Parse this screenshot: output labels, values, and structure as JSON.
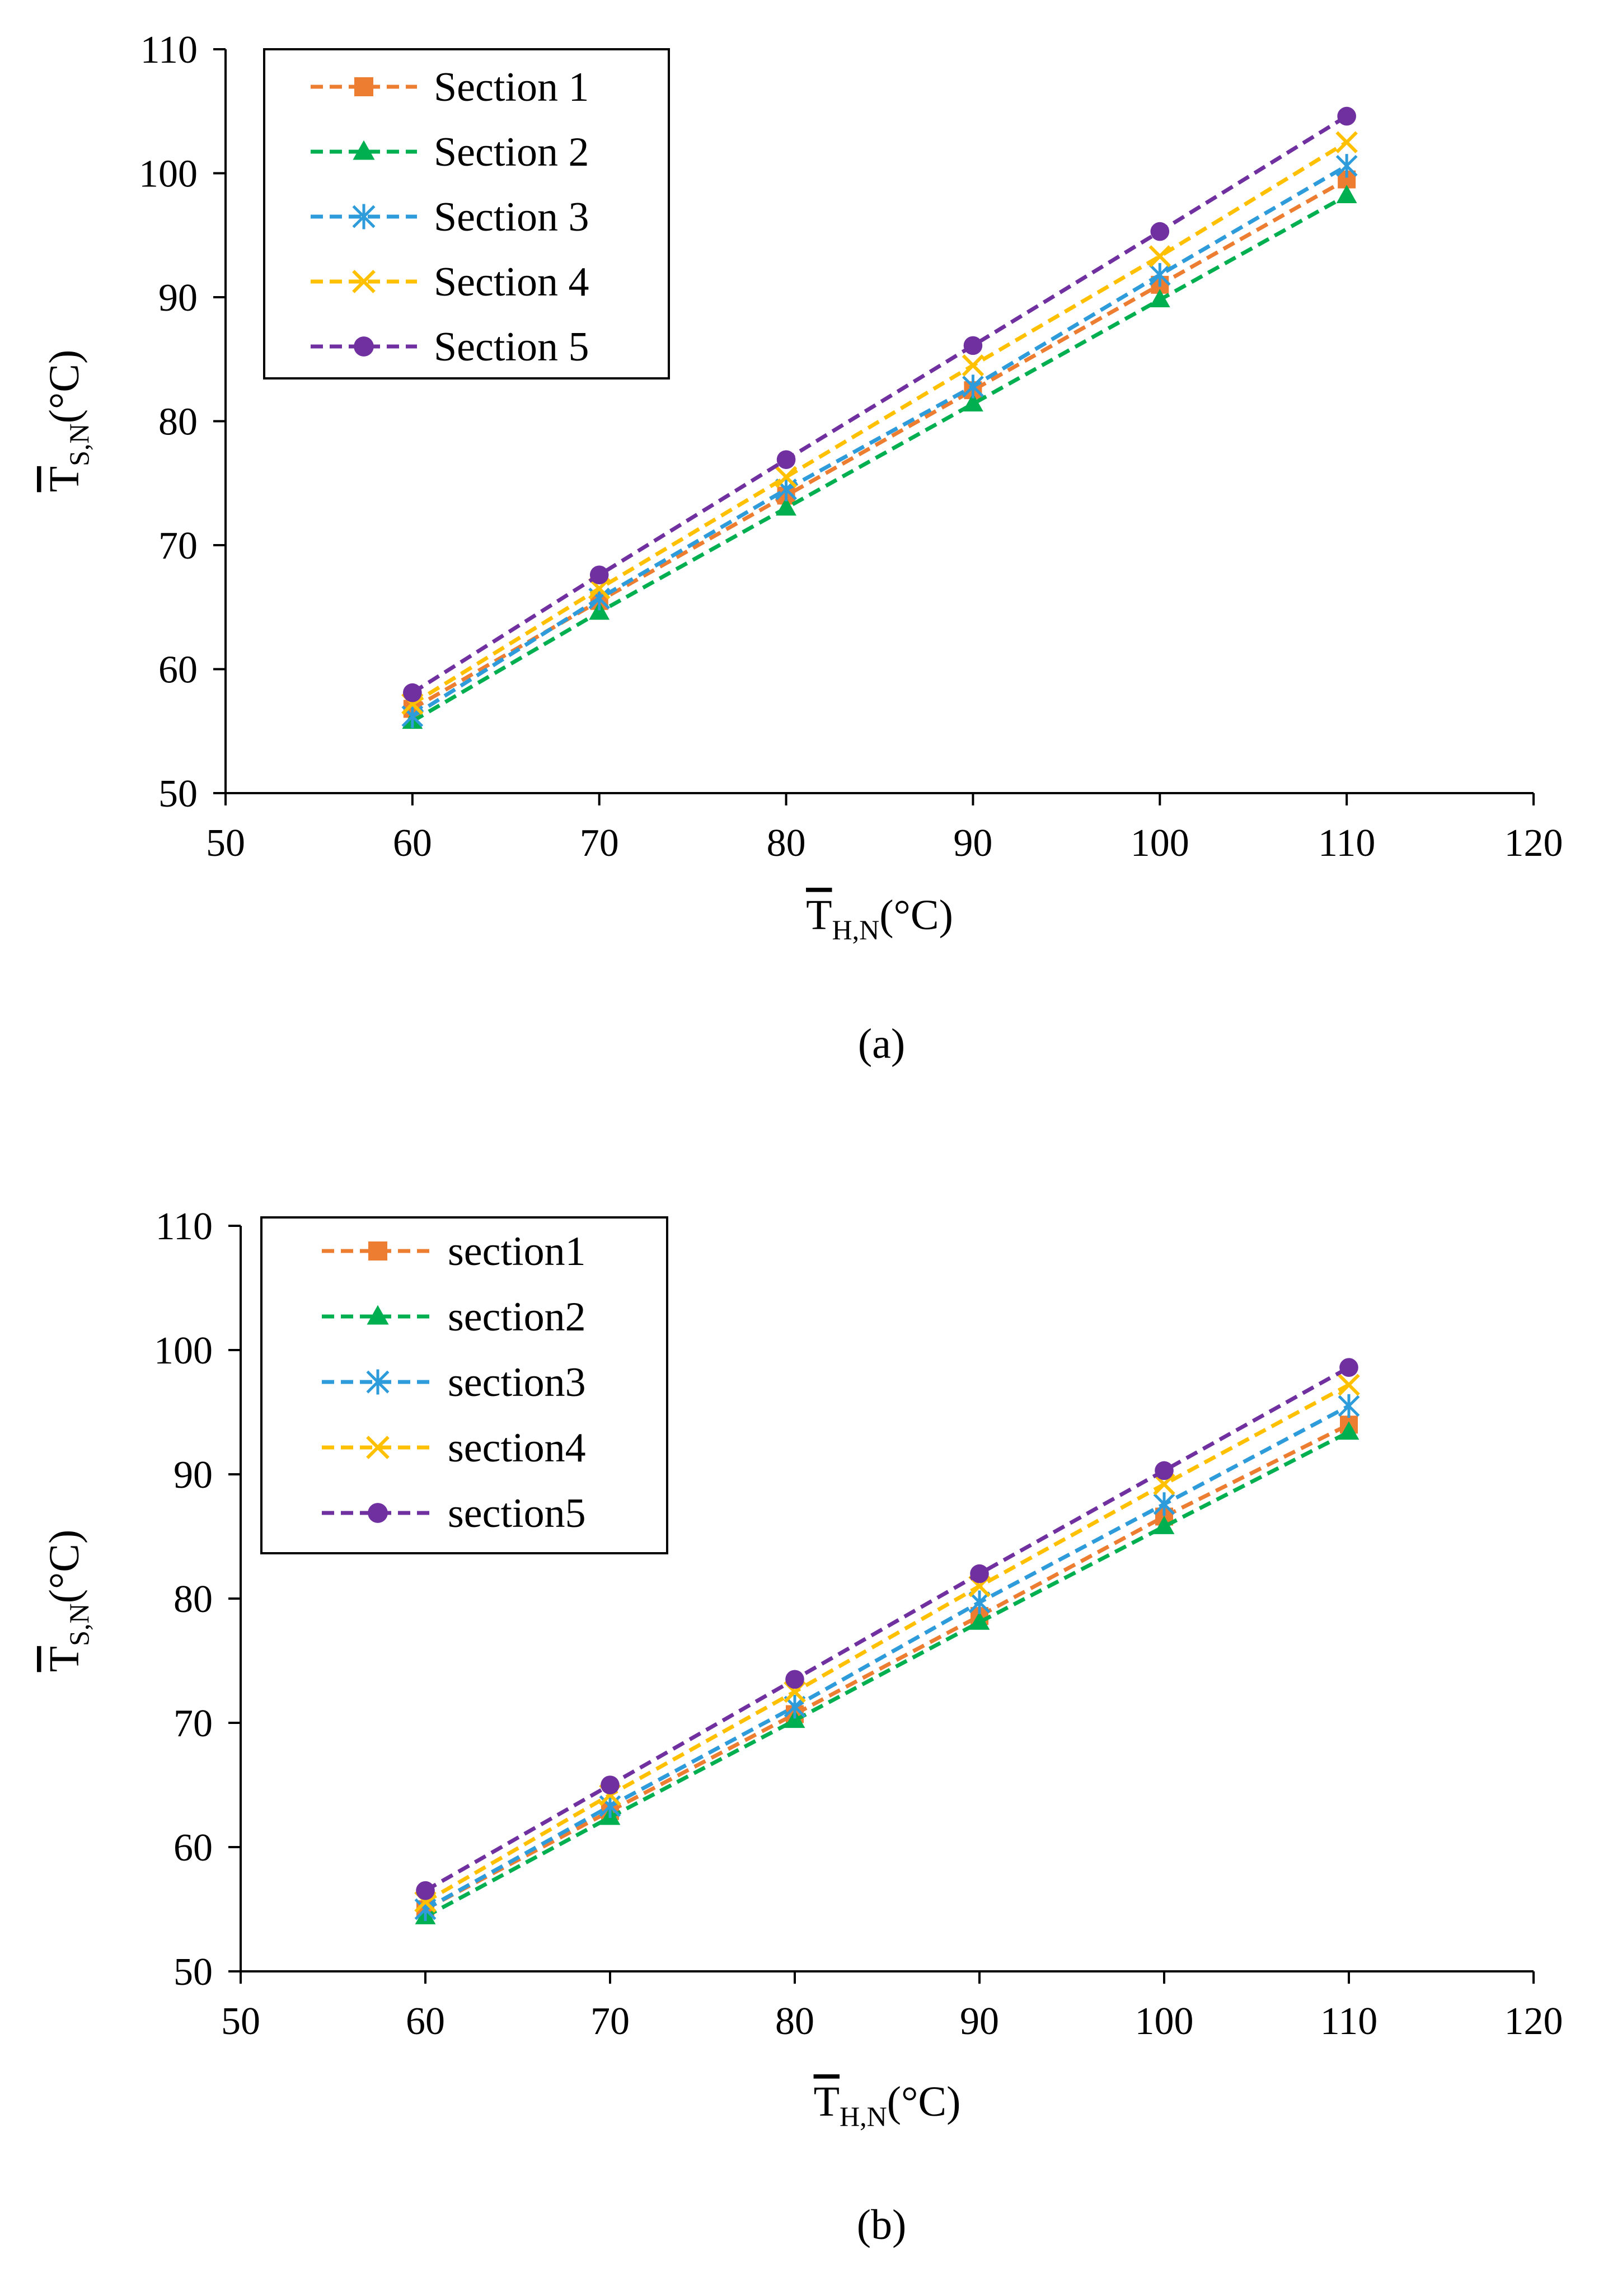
{
  "chart_data": [
    {
      "type": "line",
      "caption": "(a)",
      "xlabel": {
        "main": "T",
        "sub": "H,N",
        "unit": "(°C)"
      },
      "ylabel": {
        "main": "T",
        "sub": "S,N",
        "unit": "(°C)"
      },
      "xlim": [
        50,
        120
      ],
      "ylim": [
        50,
        110
      ],
      "xticks": [
        "50",
        "60",
        "70",
        "80",
        "90",
        "100",
        "110",
        "120"
      ],
      "yticks": [
        "50",
        "60",
        "70",
        "80",
        "90",
        "100",
        "110"
      ],
      "legend_position": "top-left",
      "x": [
        60,
        70,
        80,
        90,
        100,
        110
      ],
      "series": [
        {
          "name": "Section 1",
          "color": "#ED7D31",
          "marker": "square",
          "values": [
            56.8,
            65.5,
            74.0,
            82.5,
            91.0,
            99.5
          ]
        },
        {
          "name": "Section 2",
          "color": "#00B050",
          "marker": "triangle",
          "values": [
            55.8,
            64.6,
            73.0,
            81.4,
            89.8,
            98.2
          ]
        },
        {
          "name": "Section 3",
          "color": "#2E9BDA",
          "marker": "asterisk",
          "values": [
            56.2,
            65.7,
            74.5,
            82.8,
            91.8,
            100.6
          ]
        },
        {
          "name": "Section 4",
          "color": "#FFC000",
          "marker": "x",
          "values": [
            57.2,
            66.5,
            75.5,
            84.5,
            93.3,
            102.5
          ]
        },
        {
          "name": "Section 5",
          "color": "#7030A0",
          "marker": "circle",
          "values": [
            58.1,
            67.6,
            76.9,
            86.1,
            95.3,
            104.6
          ]
        }
      ]
    },
    {
      "type": "line",
      "caption": "(b)",
      "xlabel": {
        "main": "T",
        "sub": "H,N",
        "unit": "(°C)"
      },
      "ylabel": {
        "main": "T",
        "sub": "S,N",
        "unit": "(°C)"
      },
      "xlim": [
        50,
        120
      ],
      "ylim": [
        50,
        110
      ],
      "xticks": [
        "50",
        "60",
        "70",
        "80",
        "90",
        "100",
        "110",
        "120"
      ],
      "yticks": [
        "50",
        "60",
        "70",
        "80",
        "90",
        "100",
        "110"
      ],
      "legend_position": "top-left",
      "x": [
        60,
        70,
        80,
        90,
        100,
        110
      ],
      "series": [
        {
          "name": "section1",
          "color": "#ED7D31",
          "marker": "square",
          "values": [
            55.0,
            62.9,
            70.7,
            78.6,
            86.6,
            94.0
          ]
        },
        {
          "name": "section2",
          "color": "#00B050",
          "marker": "triangle",
          "values": [
            54.4,
            62.4,
            70.2,
            78.1,
            85.8,
            93.4
          ]
        },
        {
          "name": "section3",
          "color": "#2E9BDA",
          "marker": "asterisk",
          "values": [
            55.0,
            63.3,
            71.3,
            79.7,
            87.6,
            95.5
          ]
        },
        {
          "name": "section4",
          "color": "#FFC000",
          "marker": "x",
          "values": [
            55.6,
            64.2,
            72.5,
            81.0,
            89.2,
            97.2
          ]
        },
        {
          "name": "section5",
          "color": "#7030A0",
          "marker": "circle",
          "values": [
            56.5,
            65.0,
            73.5,
            82.0,
            90.3,
            98.6
          ]
        }
      ]
    }
  ]
}
